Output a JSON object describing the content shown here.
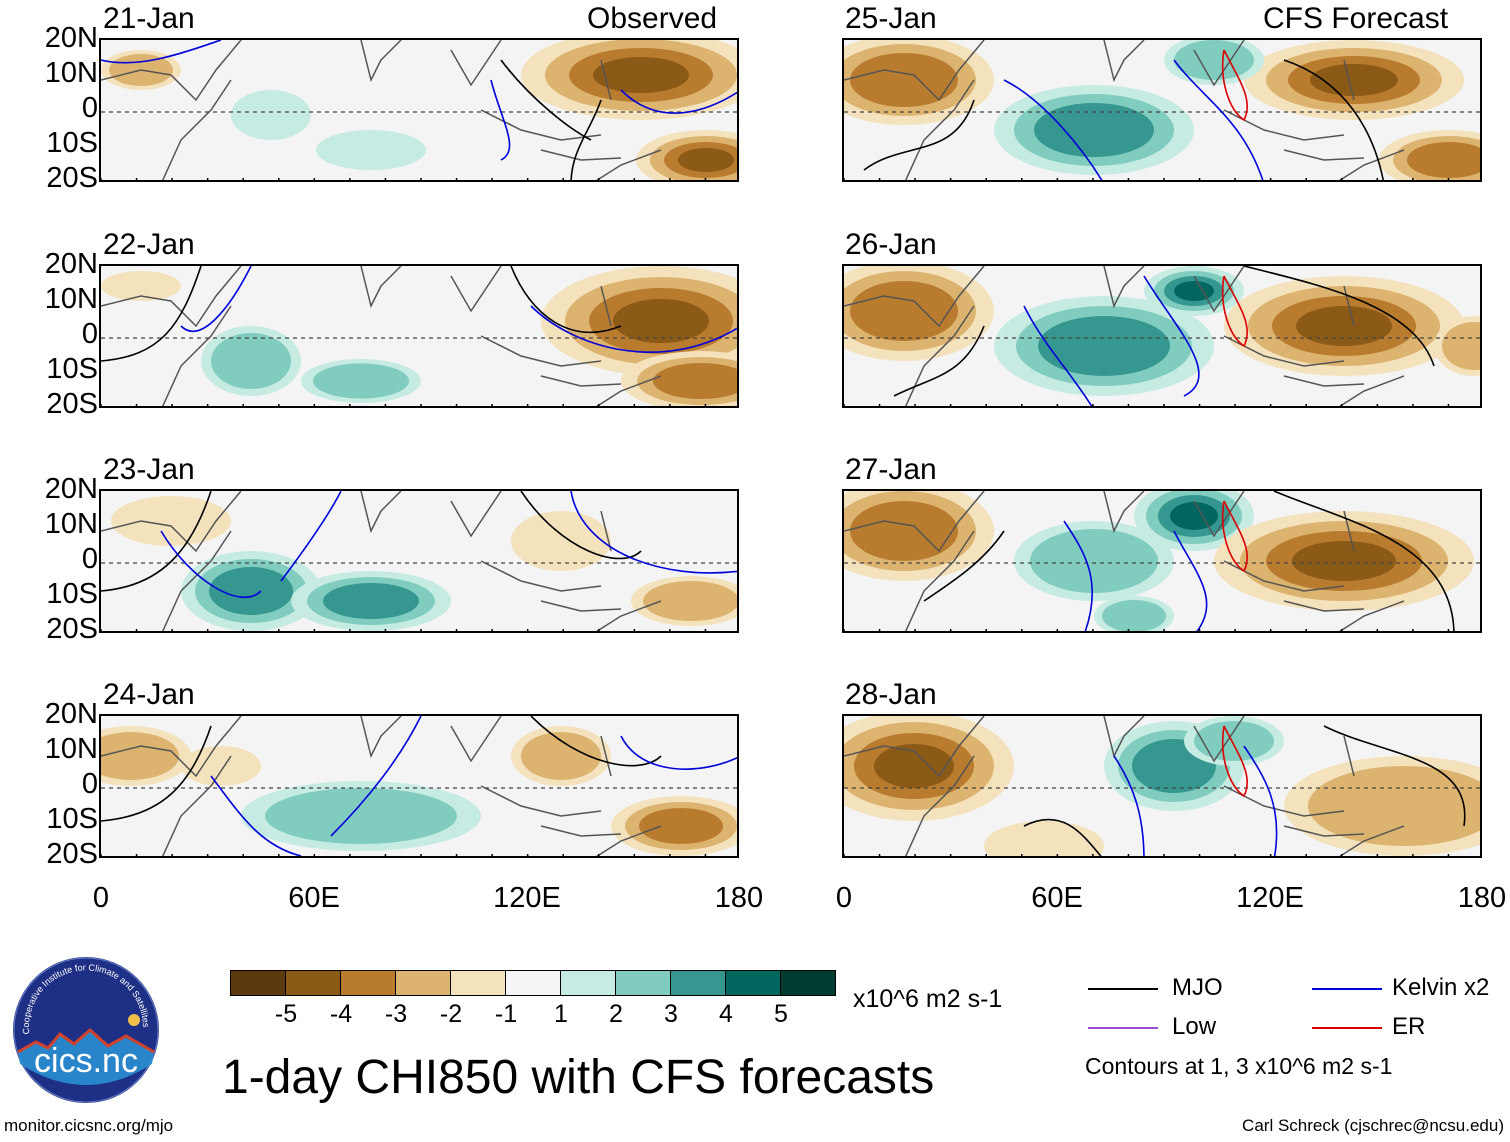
{
  "header": {
    "left_title": "Observed",
    "right_title": "CFS Forecast"
  },
  "panels": [
    {
      "date": "21-Jan",
      "kind": "observed"
    },
    {
      "date": "22-Jan",
      "kind": "observed"
    },
    {
      "date": "23-Jan",
      "kind": "observed"
    },
    {
      "date": "24-Jan",
      "kind": "observed"
    },
    {
      "date": "25-Jan",
      "kind": "forecast"
    },
    {
      "date": "26-Jan",
      "kind": "forecast"
    },
    {
      "date": "27-Jan",
      "kind": "forecast"
    },
    {
      "date": "28-Jan",
      "kind": "forecast"
    }
  ],
  "axes": {
    "lat_labels": [
      "20N",
      "10N",
      "0",
      "10S",
      "20S"
    ],
    "lon_labels": [
      "0",
      "60E",
      "120E",
      "180"
    ]
  },
  "colorbar": {
    "ticks": [
      "-5",
      "-4",
      "-3",
      "-2",
      "-1",
      "1",
      "2",
      "3",
      "4",
      "5"
    ],
    "units": "x10^6 m2 s-1",
    "colors": [
      "#5c3a10",
      "#8b5a17",
      "#b97b2e",
      "#dcb36f",
      "#f4e2bd",
      "#f4f4f4",
      "#c6ebe2",
      "#80cdbf",
      "#35978f",
      "#01665e",
      "#003c30"
    ]
  },
  "legend": {
    "mjo": {
      "label": "MJO",
      "color": "#000000"
    },
    "kelvin": {
      "label": "Kelvin x2",
      "color": "#0000dd"
    },
    "low": {
      "label": "Low",
      "color": "#9b4dd6"
    },
    "er": {
      "label": "ER",
      "color": "#dd0000"
    },
    "contours_note": "Contours at 1, 3 x10^6 m2 s-1"
  },
  "footer": {
    "title": "1-day CHI850 with CFS forecasts",
    "url": "monitor.cicsnc.org/mjo",
    "credit": "Carl Schreck (cjschrec@ncsu.edu)",
    "logo_text": "cics.nc",
    "logo_ring_text": "Cooperative Institute for Climate and Satellites"
  }
}
